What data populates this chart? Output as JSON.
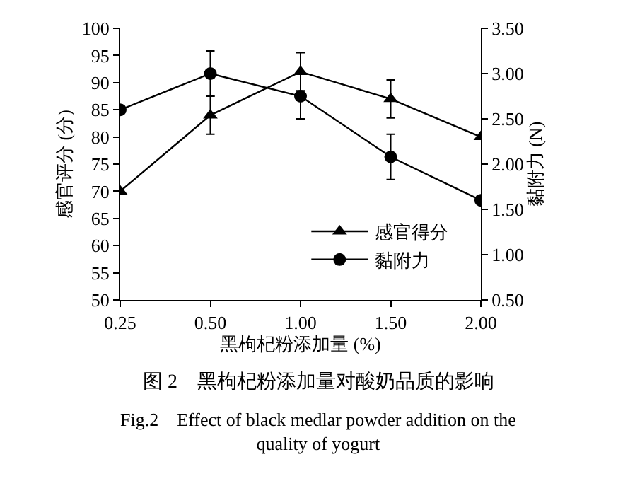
{
  "chart_data": {
    "type": "line",
    "xlabel": "黑枸杞粉添加量 (%)",
    "ylabel": "感官评分 (分)",
    "y2label": "黏附力 (N)",
    "categories": [
      "0.25",
      "0.50",
      "1.00",
      "1.50",
      "2.00"
    ],
    "series": [
      {
        "name": "感官得分",
        "color": "#000000",
        "values": [
          70,
          84,
          92,
          87,
          80
        ],
        "errors": [
          null,
          3.5,
          3.5,
          3.5,
          null
        ],
        "marker": "triangle"
      },
      {
        "name": "黏附力",
        "color": "#000000",
        "axis": "y2",
        "values": [
          2.6,
          3.0,
          2.75,
          2.08,
          1.6
        ],
        "errors": [
          null,
          0.25,
          0.25,
          0.25,
          null
        ],
        "marker": "circle"
      }
    ],
    "ylim": [
      50,
      100
    ],
    "yticks": [
      50,
      55,
      60,
      65,
      70,
      75,
      80,
      85,
      90,
      95,
      100
    ],
    "y2lim": [
      0.5,
      3.5
    ],
    "y2ticks": [
      {
        "value": 0.5,
        "label": "0.50"
      },
      {
        "value": 1,
        "label": "1.00"
      },
      {
        "value": 1.5,
        "label": "1.50"
      },
      {
        "value": 2,
        "label": "2.00"
      },
      {
        "value": 2.5,
        "label": "2.50"
      },
      {
        "value": 3,
        "label": "3.00"
      },
      {
        "value": 3.5,
        "label": "3.50"
      }
    ],
    "legend": "bottom right",
    "line_style": "solid",
    "annotations": [
      "图 2　黑枸杞粉添加量对酸奶品质的影响",
      "Fig.2　Effect of black medlar powder addition on the quality of yogurt"
    ]
  }
}
